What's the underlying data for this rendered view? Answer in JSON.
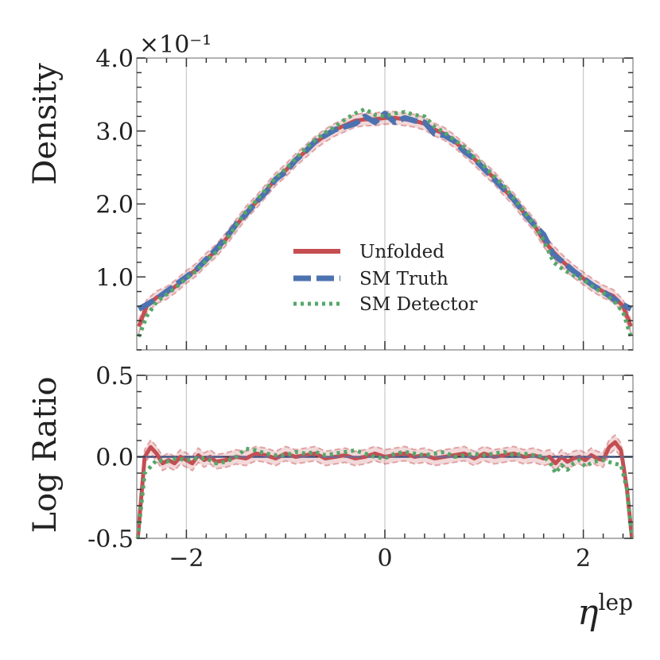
{
  "chart_data": [
    {
      "panel": "main",
      "type": "line",
      "ylabel": "Density",
      "y_scale_label": "×10⁻¹",
      "ylim": [
        0.0,
        4.0
      ],
      "yticks": [
        1.0,
        2.0,
        3.0,
        4.0
      ],
      "ytick_labels": [
        "1.0",
        "2.0",
        "3.0",
        "4.0"
      ],
      "xlim": [
        -2.5,
        2.5
      ],
      "grid": "vertical at x ticks",
      "legend_position": "center-right",
      "series": [
        {
          "name": "Unfolded",
          "color": "#c44e52",
          "style": "solid",
          "band": true,
          "x": [
            -2.48,
            -2.4,
            -2.3,
            -2.2,
            -2.1,
            -2.0,
            -1.9,
            -1.8,
            -1.7,
            -1.6,
            -1.5,
            -1.4,
            -1.3,
            -1.2,
            -1.1,
            -1.0,
            -0.9,
            -0.8,
            -0.7,
            -0.6,
            -0.5,
            -0.4,
            -0.3,
            -0.2,
            -0.1,
            0.0,
            0.1,
            0.2,
            0.3,
            0.4,
            0.5,
            0.6,
            0.7,
            0.8,
            0.9,
            1.0,
            1.1,
            1.2,
            1.3,
            1.4,
            1.5,
            1.6,
            1.7,
            1.8,
            1.9,
            2.0,
            2.1,
            2.2,
            2.3,
            2.4,
            2.48
          ],
          "y": [
            0.32,
            0.6,
            0.72,
            0.78,
            0.88,
            1.0,
            1.1,
            1.24,
            1.36,
            1.52,
            1.7,
            1.88,
            2.02,
            2.18,
            2.34,
            2.46,
            2.6,
            2.72,
            2.84,
            2.94,
            3.02,
            3.08,
            3.14,
            3.16,
            3.16,
            3.18,
            3.18,
            3.16,
            3.14,
            3.1,
            3.02,
            2.96,
            2.86,
            2.74,
            2.62,
            2.48,
            2.36,
            2.2,
            2.06,
            1.88,
            1.72,
            1.5,
            1.34,
            1.2,
            1.08,
            0.98,
            0.88,
            0.8,
            0.74,
            0.6,
            0.32
          ]
        },
        {
          "name": "SM Truth",
          "color": "#4c72b0",
          "style": "dashed",
          "x": [
            -2.48,
            -2.4,
            -2.3,
            -2.2,
            -2.1,
            -2.0,
            -1.9,
            -1.8,
            -1.7,
            -1.6,
            -1.5,
            -1.4,
            -1.3,
            -1.2,
            -1.1,
            -1.0,
            -0.9,
            -0.8,
            -0.7,
            -0.6,
            -0.5,
            -0.4,
            -0.3,
            -0.2,
            -0.1,
            0.0,
            0.1,
            0.2,
            0.3,
            0.4,
            0.5,
            0.6,
            0.7,
            0.8,
            0.9,
            1.0,
            1.1,
            1.2,
            1.3,
            1.4,
            1.5,
            1.6,
            1.7,
            1.8,
            1.9,
            2.0,
            2.1,
            2.2,
            2.3,
            2.4,
            2.48
          ],
          "y": [
            0.56,
            0.62,
            0.7,
            0.8,
            0.9,
            1.0,
            1.1,
            1.24,
            1.38,
            1.54,
            1.72,
            1.86,
            2.02,
            2.16,
            2.34,
            2.44,
            2.6,
            2.72,
            2.86,
            2.94,
            3.02,
            3.06,
            3.1,
            3.2,
            3.12,
            3.24,
            3.12,
            3.18,
            3.14,
            3.12,
            2.96,
            2.94,
            2.86,
            2.72,
            2.62,
            2.48,
            2.34,
            2.2,
            2.06,
            1.88,
            1.72,
            1.58,
            1.3,
            1.2,
            1.08,
            0.98,
            0.88,
            0.8,
            0.7,
            0.62,
            0.56
          ]
        },
        {
          "name": "SM Detector",
          "color": "#55a868",
          "style": "dotted",
          "x": [
            -2.48,
            -2.4,
            -2.3,
            -2.2,
            -2.1,
            -2.0,
            -1.9,
            -1.8,
            -1.7,
            -1.6,
            -1.5,
            -1.4,
            -1.3,
            -1.2,
            -1.1,
            -1.0,
            -0.9,
            -0.8,
            -0.7,
            -0.6,
            -0.5,
            -0.4,
            -0.3,
            -0.2,
            -0.1,
            0.0,
            0.1,
            0.2,
            0.3,
            0.4,
            0.5,
            0.6,
            0.7,
            0.8,
            0.9,
            1.0,
            1.1,
            1.2,
            1.3,
            1.4,
            1.5,
            1.6,
            1.7,
            1.8,
            1.9,
            2.0,
            2.1,
            2.2,
            2.3,
            2.4,
            2.48
          ],
          "y": [
            0.18,
            0.46,
            0.66,
            0.76,
            0.86,
            0.98,
            1.08,
            1.22,
            1.34,
            1.5,
            1.7,
            1.9,
            2.04,
            2.2,
            2.36,
            2.48,
            2.62,
            2.76,
            2.88,
            2.98,
            3.06,
            3.16,
            3.24,
            3.3,
            3.22,
            3.2,
            3.24,
            3.26,
            3.22,
            3.2,
            3.06,
            2.98,
            2.88,
            2.78,
            2.64,
            2.52,
            2.38,
            2.24,
            2.08,
            1.9,
            1.72,
            1.5,
            1.2,
            1.1,
            1.02,
            0.96,
            0.86,
            0.78,
            0.68,
            0.52,
            0.18
          ]
        }
      ]
    },
    {
      "panel": "ratio",
      "type": "line",
      "ylabel": "Log Ratio",
      "xlabel": "η",
      "xlabel_sup": "lep",
      "ylim": [
        -0.5,
        0.5
      ],
      "yticks": [
        -0.5,
        0.0,
        0.5
      ],
      "ytick_labels": [
        "-0.5",
        "0.0",
        "0.5"
      ],
      "xlim": [
        -2.5,
        2.5
      ],
      "xticks": [
        -2,
        0,
        2
      ],
      "xtick_labels": [
        "−2",
        "0",
        "2"
      ],
      "grid": "vertical at x ticks",
      "series": [
        {
          "name": "Unfolded",
          "color": "#c44e52",
          "style": "solid",
          "band": true,
          "x": [
            -2.49,
            -2.42,
            -2.36,
            -2.3,
            -2.24,
            -2.18,
            -2.12,
            -2.06,
            -2.0,
            -1.94,
            -1.88,
            -1.82,
            -1.76,
            -1.7,
            -1.6,
            -1.5,
            -1.4,
            -1.3,
            -1.2,
            -1.1,
            -1.0,
            -0.9,
            -0.8,
            -0.7,
            -0.6,
            -0.5,
            -0.4,
            -0.3,
            -0.2,
            -0.1,
            0.0,
            0.1,
            0.2,
            0.3,
            0.4,
            0.5,
            0.6,
            0.7,
            0.8,
            0.9,
            1.0,
            1.1,
            1.2,
            1.3,
            1.4,
            1.5,
            1.6,
            1.66,
            1.72,
            1.78,
            1.84,
            1.9,
            1.96,
            2.02,
            2.08,
            2.14,
            2.2,
            2.26,
            2.32,
            2.38,
            2.44,
            2.49
          ],
          "y": [
            -0.5,
            0.0,
            0.06,
            0.02,
            -0.04,
            -0.02,
            -0.04,
            0.0,
            -0.02,
            -0.04,
            0.01,
            -0.02,
            0.0,
            -0.03,
            -0.02,
            0.0,
            -0.01,
            0.02,
            0.01,
            -0.01,
            0.02,
            0.0,
            0.01,
            0.02,
            -0.01,
            0.0,
            0.01,
            -0.01,
            0.0,
            0.02,
            0.0,
            0.01,
            0.02,
            0.0,
            0.01,
            -0.01,
            0.0,
            0.01,
            0.02,
            -0.01,
            0.02,
            0.0,
            0.01,
            0.02,
            0.0,
            0.01,
            -0.01,
            0.0,
            -0.04,
            0.0,
            -0.03,
            -0.01,
            0.0,
            -0.02,
            0.01,
            -0.01,
            -0.02,
            0.06,
            0.09,
            0.04,
            -0.2,
            -0.5
          ]
        },
        {
          "name": "SM Truth",
          "color": "#4c72b0",
          "style": "dashed",
          "x": [
            -2.5,
            2.5
          ],
          "y": [
            0.0,
            0.0
          ]
        },
        {
          "name": "SM Detector",
          "color": "#55a868",
          "style": "dotted",
          "x": [
            -2.49,
            -2.42,
            -2.36,
            -2.3,
            -2.2,
            -2.1,
            -2.0,
            -1.9,
            -1.8,
            -1.7,
            -1.6,
            -1.5,
            -1.4,
            -1.3,
            -1.2,
            -1.1,
            -1.0,
            -0.9,
            -0.8,
            -0.7,
            -0.6,
            -0.5,
            -0.4,
            -0.3,
            -0.2,
            -0.1,
            0.0,
            0.1,
            0.2,
            0.3,
            0.4,
            0.5,
            0.6,
            0.7,
            0.8,
            0.9,
            1.0,
            1.1,
            1.2,
            1.3,
            1.4,
            1.5,
            1.6,
            1.66,
            1.72,
            1.78,
            1.84,
            1.9,
            1.96,
            2.02,
            2.1,
            2.2,
            2.3,
            2.38,
            2.44,
            2.49
          ],
          "y": [
            -0.5,
            -0.1,
            -0.06,
            -0.02,
            -0.03,
            -0.01,
            -0.02,
            -0.01,
            -0.01,
            -0.04,
            -0.03,
            0.0,
            0.05,
            0.04,
            0.02,
            0.01,
            0.01,
            0.03,
            0.02,
            0.03,
            0.01,
            0.02,
            0.03,
            0.04,
            0.02,
            0.0,
            -0.01,
            0.02,
            0.03,
            0.02,
            0.01,
            0.02,
            0.03,
            0.0,
            0.01,
            0.02,
            0.01,
            0.02,
            0.03,
            0.01,
            0.02,
            0.01,
            0.0,
            -0.03,
            -0.1,
            -0.05,
            -0.08,
            -0.04,
            -0.02,
            -0.06,
            -0.03,
            -0.02,
            -0.04,
            -0.05,
            -0.2,
            -0.5
          ]
        }
      ]
    }
  ]
}
